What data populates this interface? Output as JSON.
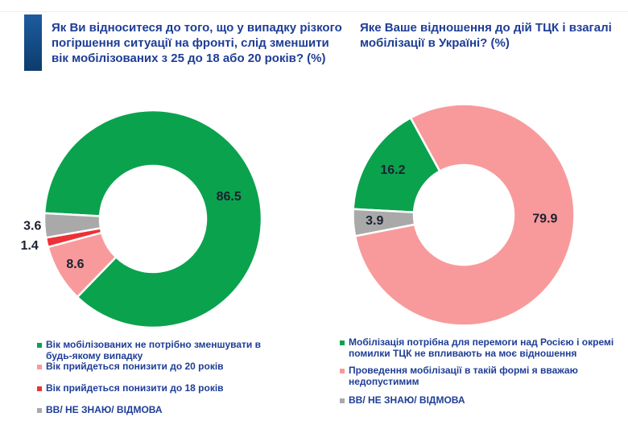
{
  "palette": {
    "green": "#0ba24e",
    "pink": "#f89a9b",
    "red": "#ec3237",
    "gray": "#a9a9a9",
    "title_blue": "#1e3d96",
    "number_label": "#1b2130",
    "accent_bar_top": "#1d5c9f",
    "accent_bar_bottom": "#0d3c6d",
    "divider": "#ececec",
    "background": "#ffffff"
  },
  "chart_data": [
    {
      "type": "pie",
      "subtype": "donut",
      "units": "%",
      "title": "Як Ви відноситеся до того, що у випадку різкого погіршення ситуації на фронті, слід зменшити вік мобілізованих з 25 до 18 або 20 років? (%)",
      "title_lines": [
        "Як Ви відноситеся до того, що у випадку різкого",
        "погіршення ситуації на фронті, слід зменшити",
        "вік мобілізованих з 25 до 18 або 20 років? (%)"
      ],
      "legend_position": "bottom",
      "start_angle_clockwise_from_top_deg": 273,
      "slices": [
        {
          "label": "Вік мобілізованих не потрібно зменшувати в будь-якому випадку",
          "legend_lines": [
            "Вік мобілізованих не потрібно зменшувати в",
            "будь-якому випадку"
          ],
          "value": 86.5,
          "value_label": "86.5",
          "color": "green"
        },
        {
          "label": "Вік прийдеться понизити до 20 років",
          "legend_lines": [
            "Вік прийдеться понизити до 20 років"
          ],
          "value": 8.6,
          "value_label": "8.6",
          "color": "pink"
        },
        {
          "label": "Вік прийдеться понизити до 18 років",
          "legend_lines": [
            "Вік прийдеться понизити до 18 років"
          ],
          "value": 1.4,
          "value_label": "1.4",
          "color": "red"
        },
        {
          "label": "ВВ/ НЕ ЗНАЮ/ ВІДМОВА",
          "legend_lines": [
            "ВВ/ НЕ ЗНАЮ/ ВІДМОВА"
          ],
          "value": 3.6,
          "value_label": "3.6",
          "color": "gray"
        }
      ]
    },
    {
      "type": "pie",
      "subtype": "donut",
      "units": "%",
      "title": "Яке Ваше відношення до дій ТЦК і взагалі мобілізації в Україні? (%)",
      "title_lines": [
        "Яке Ваше відношення до дій ТЦК і взагалі",
        "мобілізації в Україні? (%)"
      ],
      "legend_position": "bottom",
      "start_angle_clockwise_from_top_deg": 273,
      "slices": [
        {
          "label": "Мобілізація потрібна для перемоги над Росією і окремі помилки ТЦК не впливають на моє відношення",
          "legend_lines": [
            "Мобілізація потрібна для перемоги над Росією і окремі",
            "помилки ТЦК не впливають на моє відношення"
          ],
          "value": 16.2,
          "value_label": "16.2",
          "color": "green"
        },
        {
          "label": "Проведення мобілізації в такій формі я вважаю недопустимим",
          "legend_lines": [
            "Проведення мобілізації в такій формі я вважаю",
            "недопустимим"
          ],
          "value": 79.9,
          "value_label": "79.9",
          "color": "pink"
        },
        {
          "label": "ВВ/ НЕ ЗНАЮ/ ВІДМОВА",
          "legend_lines": [
            "ВВ/ НЕ ЗНАЮ/ ВІДМОВА"
          ],
          "value": 3.9,
          "value_label": "3.9",
          "color": "gray"
        }
      ]
    }
  ]
}
